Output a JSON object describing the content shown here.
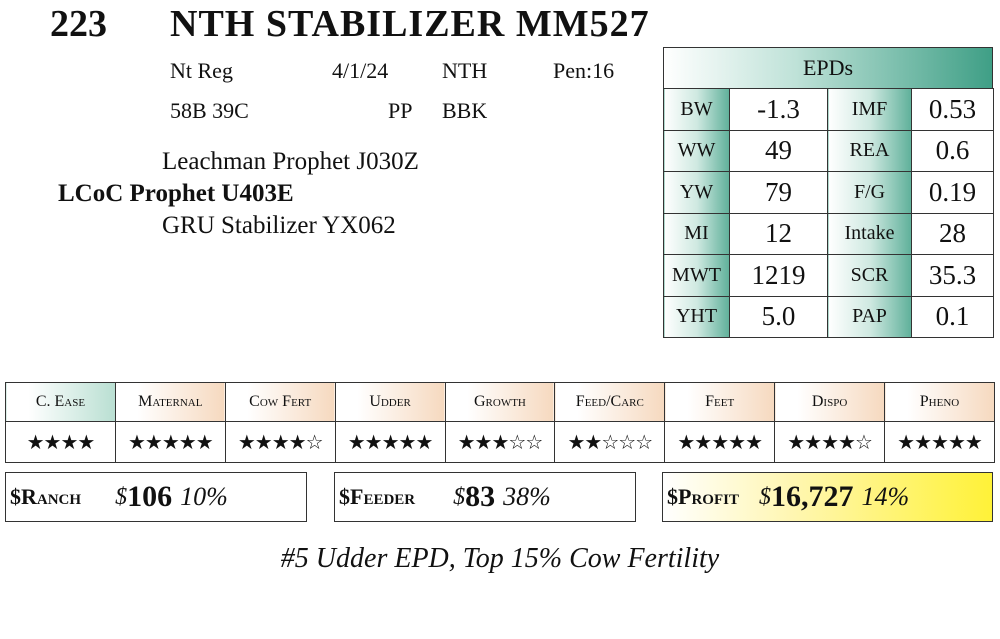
{
  "header": {
    "lot": "223",
    "name": "NTH STABILIZER MM527"
  },
  "info": {
    "reg": "Nt Reg",
    "date": "4/1/24",
    "breeder": "NTH",
    "pen": "Pen:16",
    "tattoo": "58B 39C",
    "polled": "PP",
    "color": "BBK"
  },
  "pedigree": {
    "sire_sire": "Leachman Prophet J030Z",
    "sire": "LCoC Prophet U403E",
    "dam_sire": "GRU Stabilizer YX062"
  },
  "epds": {
    "title": "EPDs",
    "rows": [
      {
        "l1": "BW",
        "v1": "-1.3",
        "l2": "IMF",
        "v2": "0.53"
      },
      {
        "l1": "WW",
        "v1": "49",
        "l2": "REA",
        "v2": "0.6"
      },
      {
        "l1": "YW",
        "v1": "79",
        "l2": "F/G",
        "v2": "0.19"
      },
      {
        "l1": "MI",
        "v1": "12",
        "l2": "Intake",
        "v2": "28"
      },
      {
        "l1": "MWT",
        "v1": "1219",
        "l2": "SCR",
        "v2": "35.3"
      },
      {
        "l1": "YHT",
        "v1": "5.0",
        "l2": "PAP",
        "v2": "0.1"
      }
    ]
  },
  "ratings": [
    {
      "label": "C. Ease",
      "stars": "★★★★"
    },
    {
      "label": "Maternal",
      "stars": "★★★★★"
    },
    {
      "label": "Cow Fert",
      "stars": "★★★★☆"
    },
    {
      "label": "Udder",
      "stars": "★★★★★"
    },
    {
      "label": "Growth",
      "stars": "★★★☆☆"
    },
    {
      "label": "Feed/Carc",
      "stars": "★★☆☆☆"
    },
    {
      "label": "Feet",
      "stars": "★★★★★"
    },
    {
      "label": "Dispo",
      "stars": "★★★★☆"
    },
    {
      "label": "Pheno",
      "stars": "★★★★★"
    }
  ],
  "indexes": {
    "ranch": {
      "label": "$Ranch",
      "currency": "$",
      "value": "106",
      "pct": "10%"
    },
    "feeder": {
      "label": "$Feeder",
      "currency": "$",
      "value": "83",
      "pct": "38%"
    },
    "profit": {
      "label": "$Profit",
      "currency": "$",
      "value": "16,727",
      "pct": "14%"
    }
  },
  "note": "#5 Udder EPD, Top 15% Cow Fertility",
  "colors": {
    "epd_green": "#3f9f86",
    "rating_tan": "#f6d9bf",
    "profit_yellow": "#fff238"
  }
}
